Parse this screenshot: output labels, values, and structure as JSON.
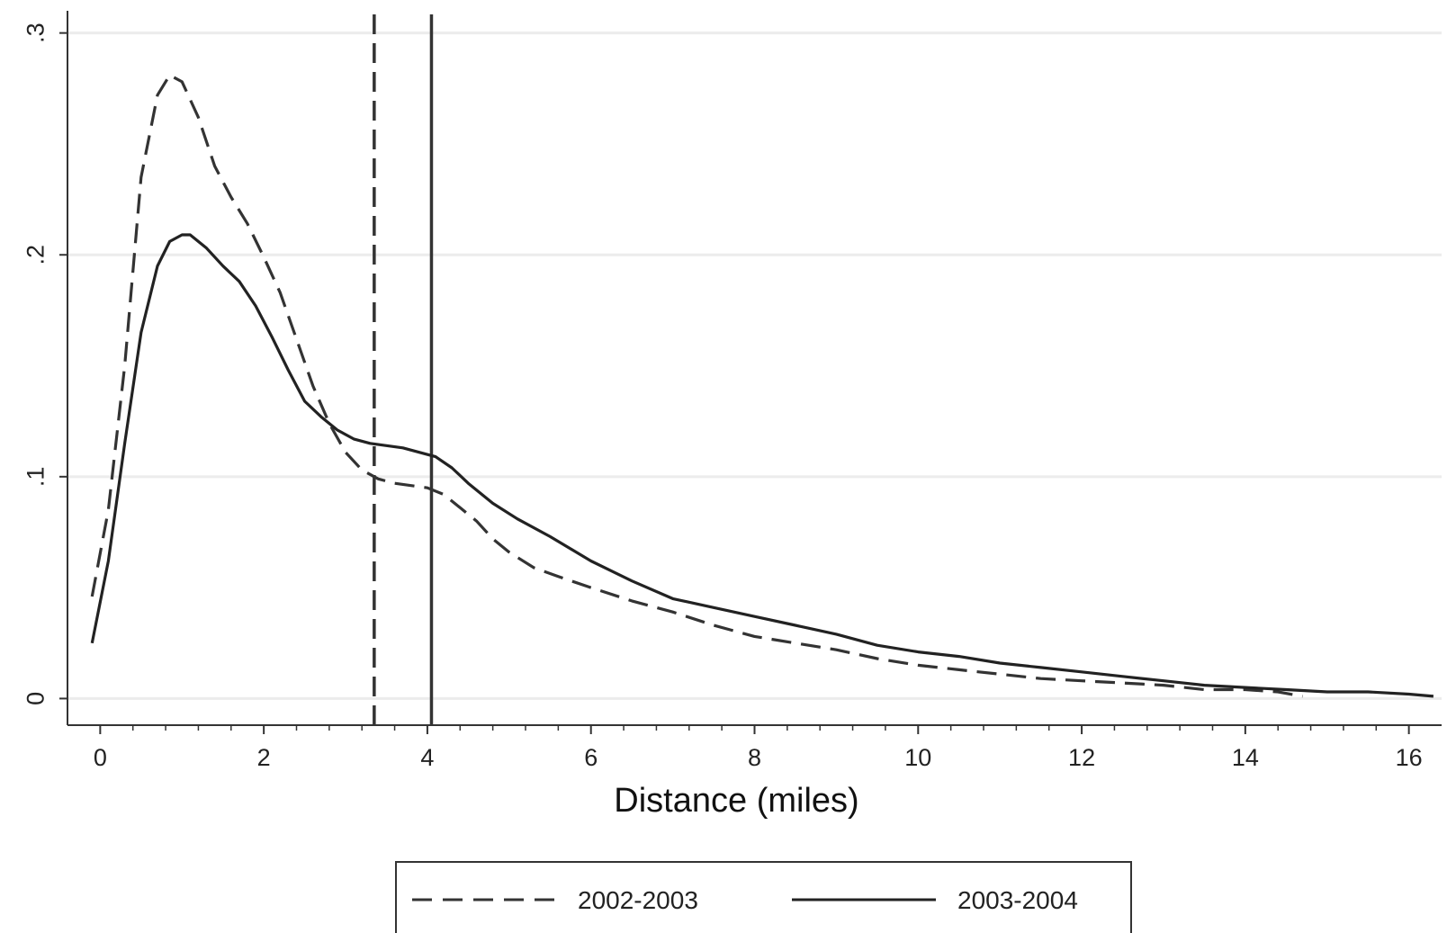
{
  "chart_data": {
    "type": "line",
    "xlabel": "Distance (miles)",
    "ylabel": "",
    "xlim": [
      -0.4,
      16.4
    ],
    "ylim": [
      -0.012,
      0.31
    ],
    "xticks": [
      0,
      2,
      4,
      6,
      8,
      10,
      12,
      14,
      16
    ],
    "xtick_labels": [
      "0",
      "2",
      "4",
      "6",
      "8",
      "10",
      "12",
      "14",
      "16"
    ],
    "yticks": [
      0,
      0.1,
      0.2,
      0.3
    ],
    "ytick_labels": [
      "0",
      ".1",
      ".2",
      ".3"
    ],
    "grid": true,
    "legend_position": "bottom",
    "series": [
      {
        "name": "2002-2003",
        "style": "dashed",
        "color": "#333333",
        "x": [
          -0.1,
          0.1,
          0.3,
          0.5,
          0.7,
          0.85,
          1.0,
          1.2,
          1.4,
          1.6,
          1.8,
          2.0,
          2.2,
          2.4,
          2.6,
          2.8,
          3.0,
          3.2,
          3.4,
          3.6,
          3.8,
          4.0,
          4.2,
          4.4,
          4.6,
          4.8,
          5.0,
          5.3,
          5.6,
          6.0,
          6.5,
          7.0,
          7.5,
          8.0,
          8.5,
          9.0,
          9.5,
          10.0,
          10.5,
          11.0,
          11.5,
          12.0,
          12.5,
          13.0,
          13.5,
          14.0,
          14.4,
          14.7
        ],
        "y": [
          0.046,
          0.085,
          0.15,
          0.235,
          0.272,
          0.281,
          0.278,
          0.262,
          0.24,
          0.226,
          0.214,
          0.199,
          0.183,
          0.162,
          0.141,
          0.124,
          0.111,
          0.103,
          0.099,
          0.097,
          0.096,
          0.095,
          0.092,
          0.086,
          0.08,
          0.072,
          0.066,
          0.059,
          0.055,
          0.05,
          0.044,
          0.039,
          0.033,
          0.028,
          0.025,
          0.022,
          0.018,
          0.015,
          0.013,
          0.011,
          0.009,
          0.008,
          0.007,
          0.006,
          0.004,
          0.004,
          0.003,
          0.001
        ]
      },
      {
        "name": "2003-2004",
        "style": "solid",
        "color": "#222222",
        "x": [
          -0.1,
          0.1,
          0.3,
          0.5,
          0.7,
          0.85,
          1.0,
          1.1,
          1.3,
          1.5,
          1.7,
          1.9,
          2.1,
          2.3,
          2.5,
          2.7,
          2.9,
          3.1,
          3.3,
          3.5,
          3.7,
          3.9,
          4.1,
          4.3,
          4.5,
          4.8,
          5.1,
          5.5,
          6.0,
          6.5,
          7.0,
          7.5,
          8.0,
          8.5,
          9.0,
          9.5,
          10.0,
          10.5,
          11.0,
          11.5,
          12.0,
          12.5,
          13.0,
          13.5,
          14.0,
          14.5,
          15.0,
          15.5,
          16.0,
          16.3
        ],
        "y": [
          0.025,
          0.062,
          0.115,
          0.165,
          0.195,
          0.206,
          0.209,
          0.209,
          0.203,
          0.195,
          0.188,
          0.177,
          0.163,
          0.148,
          0.134,
          0.127,
          0.121,
          0.117,
          0.115,
          0.114,
          0.113,
          0.111,
          0.109,
          0.104,
          0.097,
          0.088,
          0.081,
          0.073,
          0.062,
          0.053,
          0.045,
          0.041,
          0.037,
          0.033,
          0.029,
          0.024,
          0.021,
          0.019,
          0.016,
          0.014,
          0.012,
          0.01,
          0.008,
          0.006,
          0.005,
          0.004,
          0.003,
          0.003,
          0.002,
          0.001
        ]
      }
    ],
    "reference_lines": [
      {
        "x": 3.35,
        "style": "dashed",
        "series": "2002-2003"
      },
      {
        "x": 4.05,
        "style": "solid",
        "series": "2003-2004"
      }
    ]
  },
  "legend": {
    "items": [
      {
        "label": "2002-2003",
        "style": "dashed"
      },
      {
        "label": "2003-2004",
        "style": "solid"
      }
    ]
  }
}
